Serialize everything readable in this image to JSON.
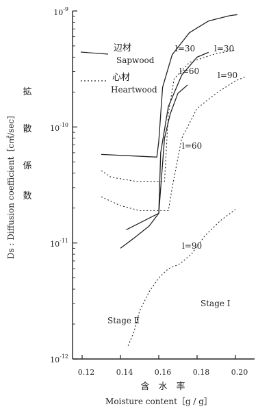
{
  "chart_data": {
    "type": "line",
    "yscale": "log",
    "xlim": [
      0.115,
      0.21
    ],
    "ylim": [
      1e-12,
      1e-09
    ],
    "x_ticks": [
      "0.12",
      "0.14",
      "0.16",
      "0.18",
      "0.20"
    ],
    "y_ticks": [
      {
        "base": "10",
        "exp": "-9"
      },
      {
        "base": "10",
        "exp": "-10"
      },
      {
        "base": "10",
        "exp": "-11"
      },
      {
        "base": "10",
        "exp": "-12"
      }
    ],
    "xlabel_jp": "含　水　率",
    "xlabel": "Moisture content［g / g］",
    "ylabel": "Ds : Diffusion coefficient［c㎡/sec］",
    "ylabel_jp": [
      "拡",
      "散",
      "係",
      "数"
    ],
    "legend": [
      {
        "jp": "辺材",
        "en": "Sapwood",
        "style": "solid"
      },
      {
        "jp": "心材",
        "en": "Heartwood",
        "style": "dotted"
      }
    ],
    "annotations": {
      "stage1": "Stage Ⅰ",
      "stage2": "Stage Ⅱ",
      "s30": "l=30",
      "s60": "l=60",
      "h30": "l=30",
      "h90": "l=90",
      "h60": "l=60",
      "h90_low": "l=90"
    },
    "series": [
      {
        "style": "solid",
        "points": [
          [
            0.13,
            5.8e-11
          ],
          [
            0.159,
            5.5e-11
          ],
          [
            0.16,
            7.5e-11
          ],
          [
            0.162,
            2.2e-10
          ],
          [
            0.167,
            4.2e-10
          ],
          [
            0.176,
            6.5e-10
          ],
          [
            0.186,
            8.2e-10
          ],
          [
            0.197,
            9.1e-10
          ],
          [
            0.201,
            9.3e-10
          ]
        ]
      },
      {
        "style": "solid",
        "points": [
          [
            0.143,
            1.3e-11
          ],
          [
            0.157,
            1.7e-11
          ],
          [
            0.16,
            1.8e-11
          ],
          [
            0.161,
            6e-11
          ],
          [
            0.165,
            1.5e-10
          ],
          [
            0.172,
            2.8e-10
          ],
          [
            0.18,
            4e-10
          ],
          [
            0.186,
            4.4e-10
          ]
        ]
      },
      {
        "style": "solid",
        "points": [
          [
            0.14,
            9e-12
          ],
          [
            0.147,
            1.1e-11
          ],
          [
            0.155,
            1.4e-11
          ],
          [
            0.16,
            1.8e-11
          ],
          [
            0.163,
            8e-11
          ],
          [
            0.166,
            1.3e-10
          ],
          [
            0.17,
            1.95e-10
          ],
          [
            0.175,
            2.3e-10
          ]
        ]
      },
      {
        "style": "dotted",
        "points": [
          [
            0.13,
            4.2e-11
          ],
          [
            0.135,
            3.7e-11
          ],
          [
            0.148,
            3.4e-11
          ],
          [
            0.163,
            3.4e-11
          ],
          [
            0.165,
            1.3e-10
          ],
          [
            0.168,
            2.6e-10
          ],
          [
            0.176,
            3.6e-10
          ],
          [
            0.19,
            4.3e-10
          ],
          [
            0.2,
            4.6e-10
          ]
        ]
      },
      {
        "style": "dotted",
        "points": [
          [
            0.13,
            2.5e-11
          ],
          [
            0.14,
            2.1e-11
          ],
          [
            0.15,
            1.9e-11
          ],
          [
            0.165,
            1.9e-11
          ],
          [
            0.167,
            3e-11
          ],
          [
            0.172,
            8e-11
          ],
          [
            0.18,
            1.45e-10
          ],
          [
            0.19,
            1.95e-10
          ],
          [
            0.2,
            2.5e-10
          ],
          [
            0.205,
            2.7e-10
          ]
        ]
      },
      {
        "style": "dotted",
        "points": [
          [
            0.144,
            1.3e-12
          ],
          [
            0.147,
            1.7e-12
          ],
          [
            0.15,
            2.6e-12
          ],
          [
            0.155,
            3.8e-12
          ],
          [
            0.16,
            5e-12
          ],
          [
            0.165,
            6e-12
          ],
          [
            0.171,
            6.6e-12
          ],
          [
            0.177,
            8e-12
          ],
          [
            0.184,
            1.15e-11
          ],
          [
            0.192,
            1.55e-11
          ],
          [
            0.2,
            1.95e-11
          ]
        ]
      }
    ]
  }
}
